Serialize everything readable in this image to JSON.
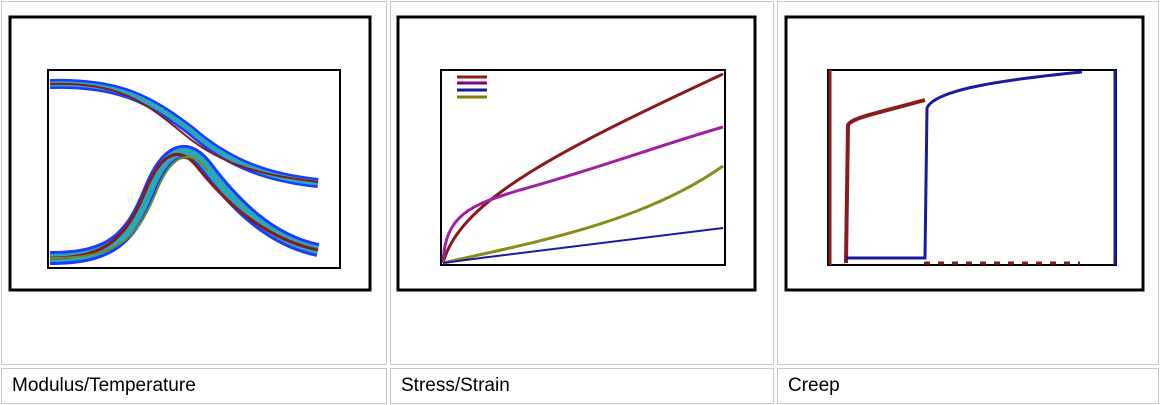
{
  "gallery": {
    "captions": [
      "Modulus/Temperature",
      "Stress/Strain",
      "Creep"
    ]
  }
}
